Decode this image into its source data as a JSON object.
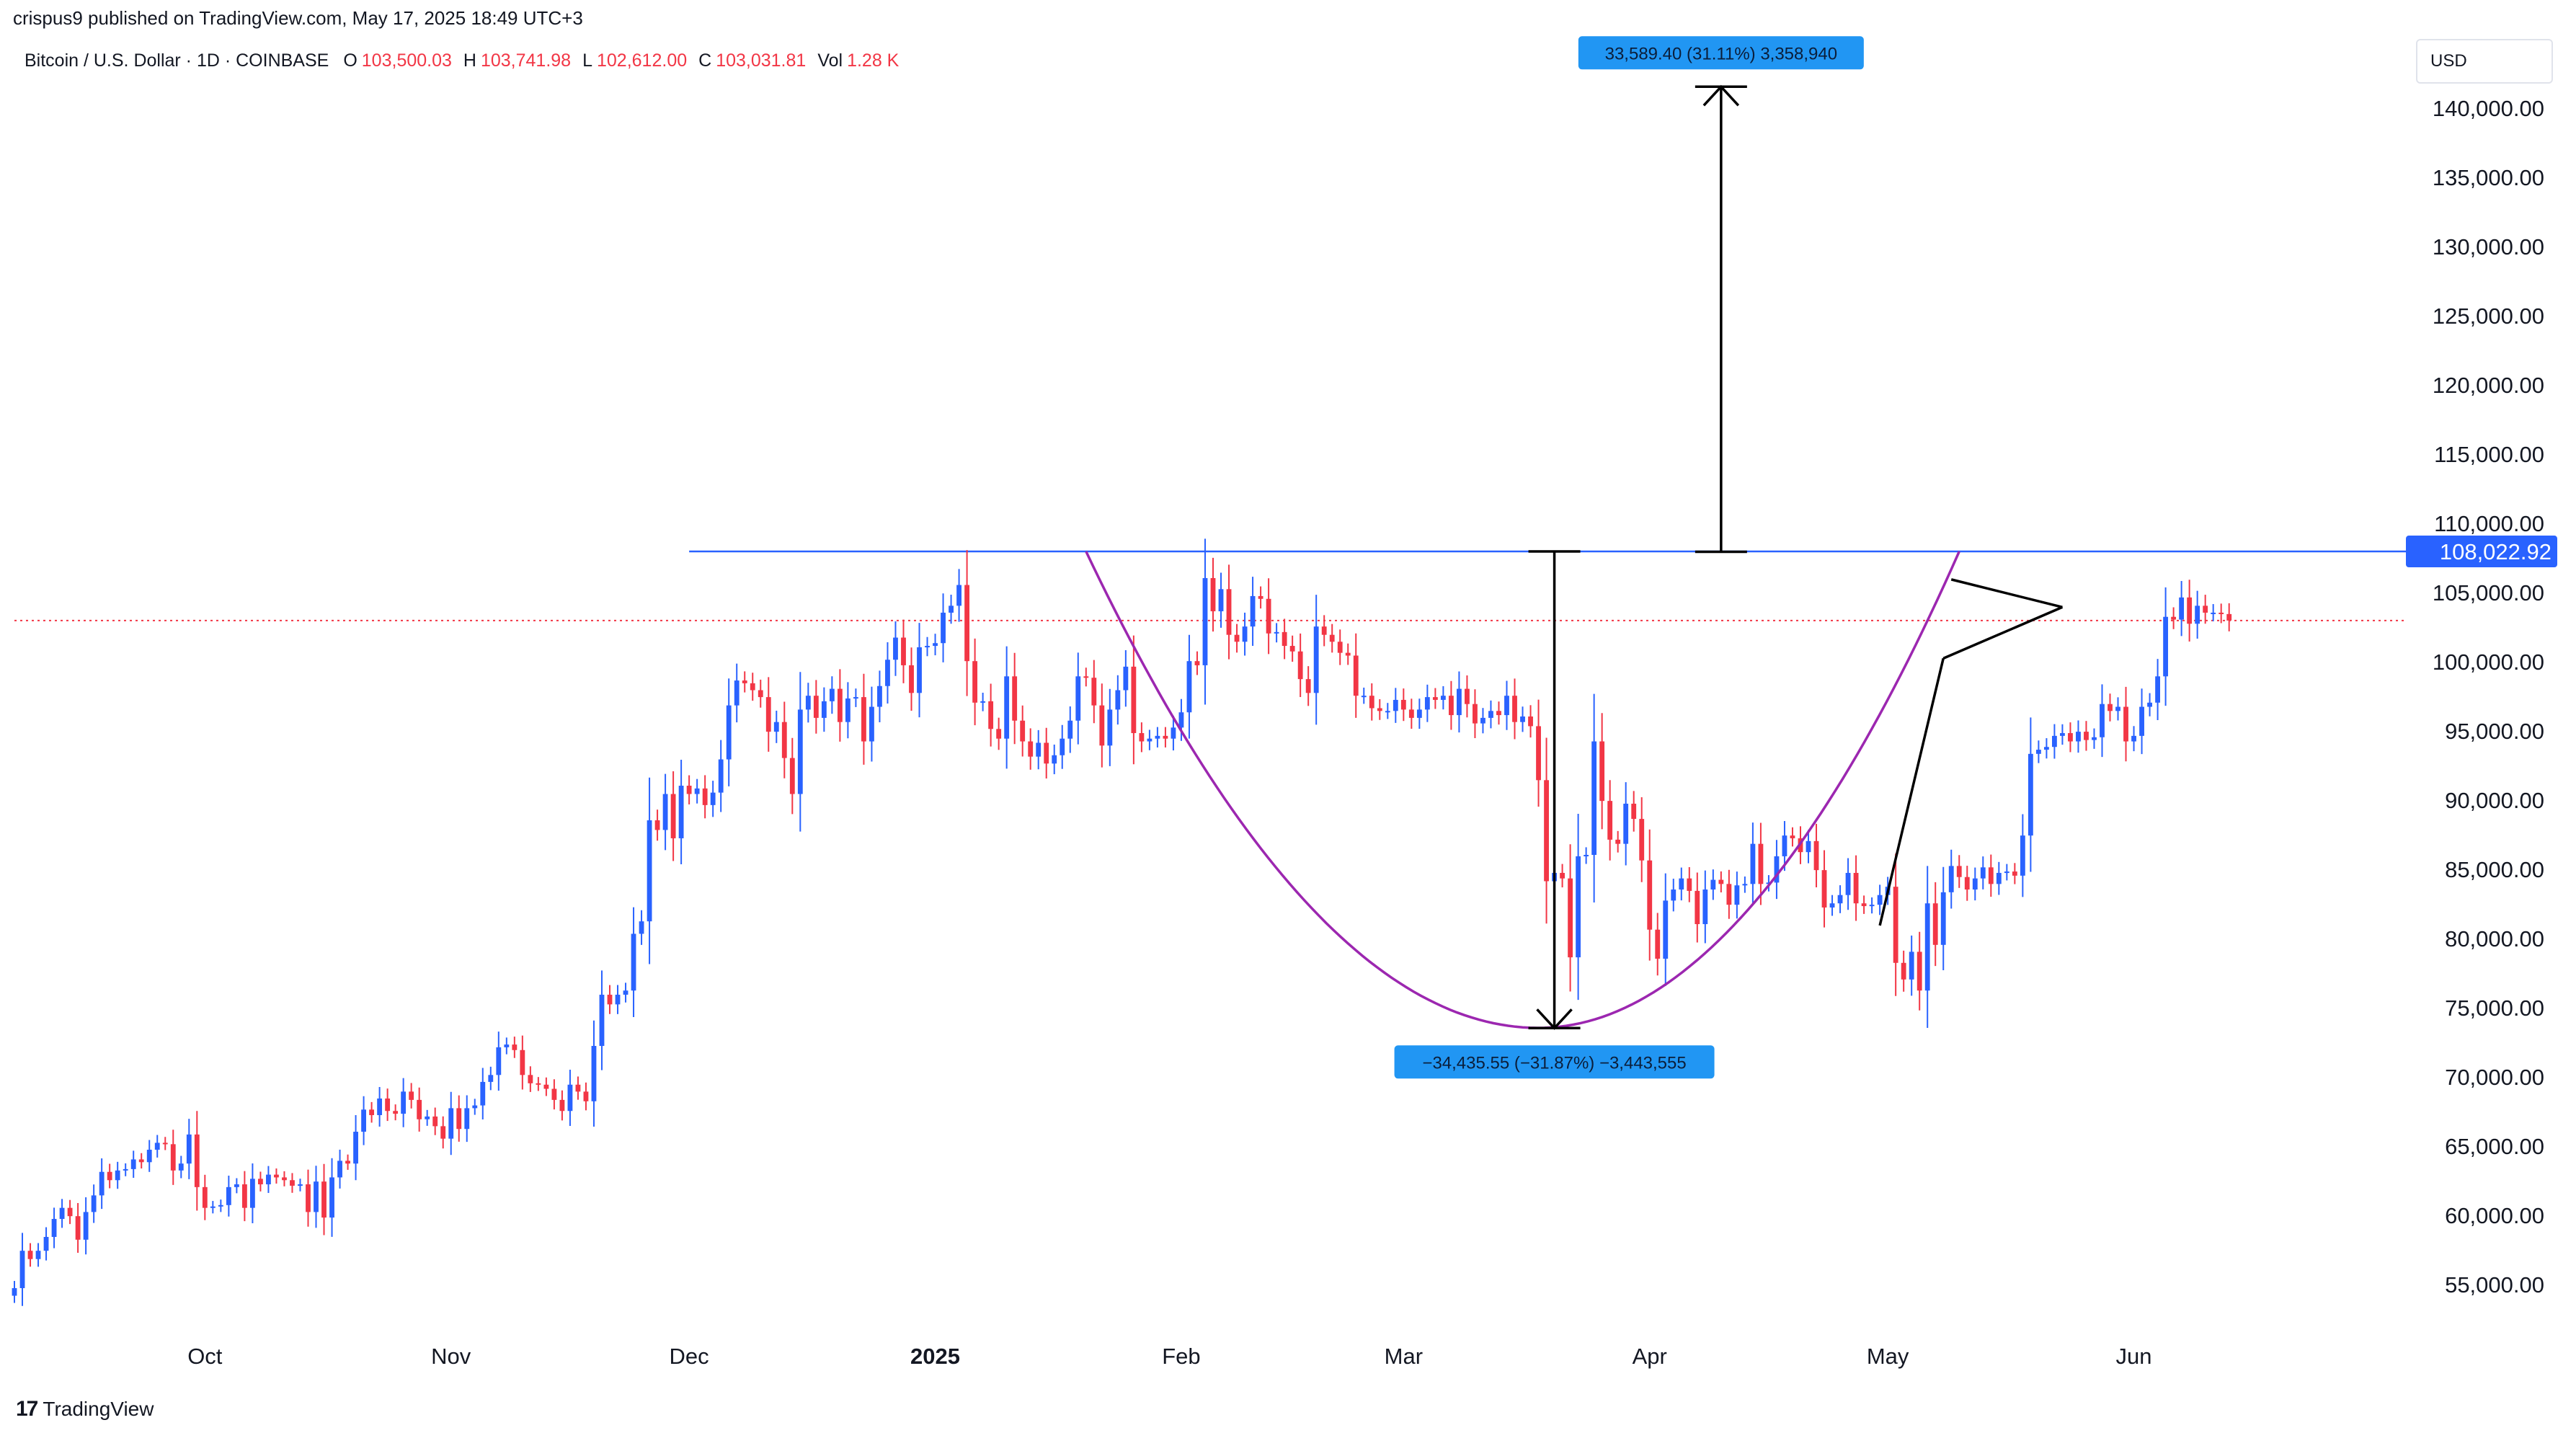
{
  "header": {
    "published": "crispus9 published on TradingView.com, May 17, 2025 18:49 UTC+3"
  },
  "legend": {
    "symbol": "Bitcoin / U.S. Dollar · 1D · COINBASE",
    "open_label": "O",
    "open": "103,500.03",
    "high_label": "H",
    "high": "103,741.98",
    "low_label": "L",
    "low": "102,612.00",
    "close_label": "C",
    "close": "103,031.81",
    "vol_label": "Vol",
    "vol": "1.28 K"
  },
  "currency": "USD",
  "footer": {
    "brand": "TradingView"
  },
  "colors": {
    "up": "#2962ff",
    "down": "#f23645",
    "line": "#2962ff",
    "cup": "#9c27b0",
    "label_bg": "#2196f3"
  },
  "chart_data": {
    "type": "candlestick",
    "y_axis": {
      "ticks": [
        "140,000.00",
        "135,000.00",
        "130,000.00",
        "125,000.00",
        "120,000.00",
        "115,000.00",
        "110,000.00",
        "105,000.00",
        "100,000.00",
        "95,000.00",
        "90,000.00",
        "85,000.00",
        "80,000.00",
        "75,000.00",
        "70,000.00",
        "65,000.00",
        "60,000.00",
        "55,000.00"
      ],
      "tick_values": [
        140000,
        135000,
        130000,
        125000,
        120000,
        115000,
        110000,
        105000,
        100000,
        95000,
        90000,
        85000,
        80000,
        75000,
        70000,
        65000,
        60000,
        55000
      ],
      "range": [
        51000,
        145000
      ]
    },
    "x_axis": {
      "labels": [
        {
          "text": "Oct",
          "date": "2024-10-01",
          "bold": false
        },
        {
          "text": "Nov",
          "date": "2024-11-01",
          "bold": false
        },
        {
          "text": "Dec",
          "date": "2024-12-01",
          "bold": false
        },
        {
          "text": "2025",
          "date": "2025-01-01",
          "bold": true
        },
        {
          "text": "Feb",
          "date": "2025-02-01",
          "bold": false
        },
        {
          "text": "Mar",
          "date": "2025-03-01",
          "bold": false
        },
        {
          "text": "Apr",
          "date": "2025-04-01",
          "bold": false
        },
        {
          "text": "May",
          "date": "2025-05-01",
          "bold": false
        },
        {
          "text": "Jun",
          "date": "2025-06-01",
          "bold": false
        }
      ],
      "range": [
        "2024-09-07",
        "2025-07-05"
      ]
    },
    "resistance_level": 108022.92,
    "resistance_label": "108,022.92",
    "last_close": 103031.81,
    "resistance_start": "2024-12-01",
    "measurements": [
      {
        "label": "33,589.40 (31.11%) 3,358,940",
        "date": "2025-04-10",
        "from": 108000,
        "to": 141600
      },
      {
        "label": "−34,435.55 (−31.87%) −3,443,555",
        "date": "2025-03-20",
        "from": 108022,
        "to": 73587
      }
    ],
    "cup": {
      "start": "2025-01-20",
      "bottom_date": "2025-03-18",
      "bottom": 73600,
      "end": "2025-05-10"
    },
    "pennant": {
      "upper": [
        {
          "date": "2025-05-09",
          "price": 106000
        },
        {
          "date": "2025-05-23",
          "price": 104000
        }
      ],
      "lower": [
        {
          "date": "2025-05-08",
          "price": 100300
        },
        {
          "date": "2025-05-23",
          "price": 104000
        }
      ],
      "pole": [
        {
          "date": "2025-04-30",
          "price": 81000
        },
        {
          "date": "2025-05-08",
          "price": 100300
        }
      ]
    },
    "series": [
      {
        "start": "2024-09-07",
        "close": [
          54800,
          57500,
          56900,
          57500,
          58500,
          59800,
          60600,
          60000,
          58300,
          60300,
          61500,
          63200,
          62600,
          63300,
          63400,
          64100,
          63900,
          64800,
          65300,
          65200,
          63300,
          63800,
          65900,
          62100,
          60600,
          60700,
          60800,
          62100,
          62300,
          60600,
          62700,
          62300,
          63000,
          62800,
          62600,
          62200,
          62300,
          60300,
          62500,
          59900,
          62800,
          64000,
          63800,
          66100,
          67700,
          67300,
          68500,
          67600,
          67400,
          69000,
          68400,
          67000,
          67200,
          66500,
          65600,
          67800,
          66300,
          67800,
          68000,
          69700,
          70200,
          72200,
          72400,
          72000,
          70200,
          69600,
          69500,
          69200,
          68400,
          67600,
          69500,
          69000,
          68300,
          72300,
          76000,
          75300,
          76000,
          76300,
          80400,
          81300,
          88600,
          87900,
          90500,
          87300,
          91100,
          90500,
          90900,
          89700,
          90600,
          93000,
          96900,
          98700,
          98500,
          98000,
          97500,
          95000,
          95700,
          93100,
          90500,
          96600,
          97600,
          96000,
          97200,
          98100,
          95700,
          97400,
          97500,
          94300,
          96800,
          98300,
          100200,
          101800,
          99800,
          97800,
          101100,
          101200,
          101400,
          103600,
          104100,
          105600,
          100100,
          97100,
          97200,
          95200,
          94500,
          99000,
          95800,
          94300,
          93200,
          94200,
          92700,
          93300,
          94500,
          95800,
          99000,
          98900,
          96900,
          94000,
          96600,
          98000,
          99700,
          94900,
          94300,
          94500,
          94700,
          94500,
          95300,
          96400,
          100100,
          99800,
          106100,
          103700,
          105300,
          102000,
          101500,
          102600,
          104800,
          104600,
          102100,
          102200,
          101200,
          100800,
          98800,
          97800,
          102600,
          102000,
          101500,
          100700,
          100500,
          97600,
          97600,
          96700,
          96500,
          96500,
          97300,
          96600,
          96000,
          96600,
          97500,
          97300,
          97600,
          96200,
          98100,
          97000,
          95600,
          96000,
          96500,
          96200,
          97600,
          95700,
          96100,
          95400,
          91500,
          84200,
          84800,
          84400,
          78700,
          86000,
          86100,
          94300,
          90000,
          87200,
          86900,
          89800,
          88700,
          85700,
          80700,
          78600,
          82800,
          83600,
          84400,
          83500,
          81100,
          83600,
          84300,
          84000,
          82500,
          83900,
          84000,
          86900,
          84000,
          84100,
          86000,
          87500,
          87300,
          86300,
          87100,
          85000,
          82300,
          82600,
          83200,
          84800,
          82600,
          82400,
          82500,
          83200,
          83800,
          78300,
          77100,
          79100,
          76300,
          82600,
          79600,
          83400,
          85300,
          84500,
          83600,
          84400,
          85200,
          84000,
          84800,
          84900,
          84600,
          87500,
          93400,
          93700,
          93900,
          94700,
          94900,
          94300,
          95000,
          94400,
          94600,
          97000,
          96500,
          96800,
          94300,
          94700,
          96800,
          97100,
          99000,
          103300,
          103100,
          104700,
          102800,
          104100,
          103600,
          103600,
          103500,
          103032
        ]
      }
    ]
  }
}
